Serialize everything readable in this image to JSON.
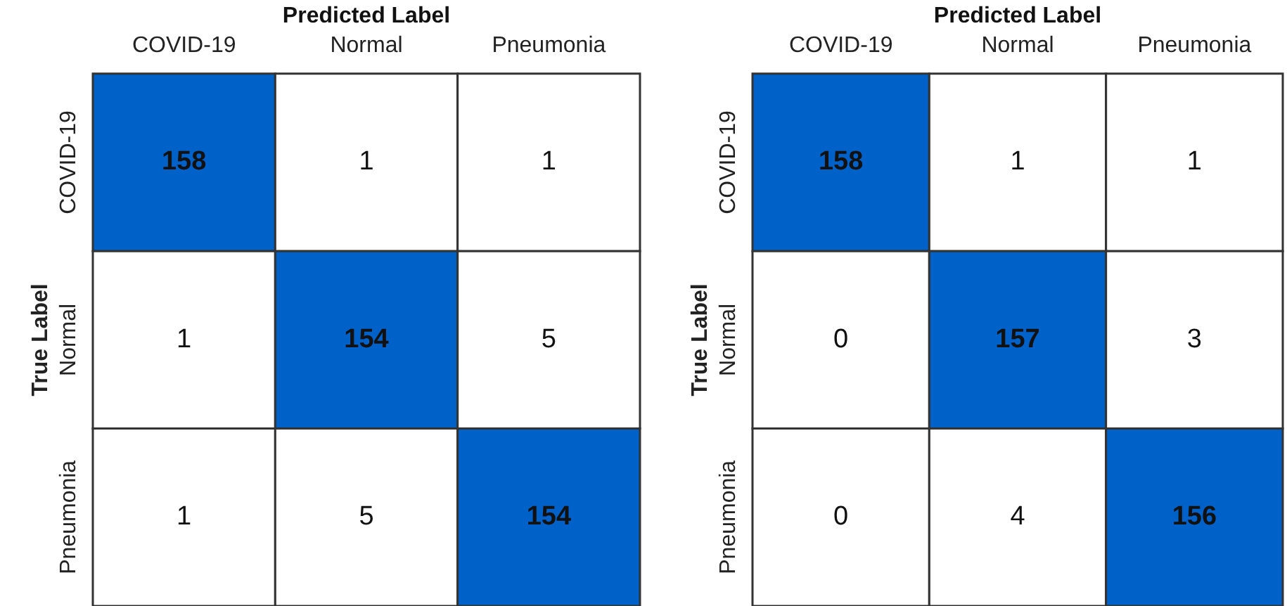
{
  "chart_data": [
    {
      "type": "heatmap",
      "xlabel": "Predicted Label",
      "ylabel": "True Label",
      "color": "#0062c8",
      "data_labels": true,
      "categories": [
        "COVID-19",
        "Normal",
        "Pneumonia"
      ],
      "y_categories": [
        "COVID-19",
        "Normal",
        "Pneumonia"
      ],
      "cells": [
        [
          158,
          1,
          1
        ],
        [
          1,
          154,
          5
        ],
        [
          1,
          5,
          154
        ]
      ]
    },
    {
      "type": "heatmap",
      "xlabel": "Predicted Label",
      "ylabel": "True Label",
      "color": "#0062c8",
      "data_labels": true,
      "categories": [
        "COVID-19",
        "Normal",
        "Pneumonia"
      ],
      "y_categories": [
        "COVID-19",
        "Normal",
        "Pneumonia"
      ],
      "cells": [
        [
          158,
          1,
          1
        ],
        [
          0,
          157,
          3
        ],
        [
          0,
          4,
          156
        ]
      ]
    }
  ]
}
